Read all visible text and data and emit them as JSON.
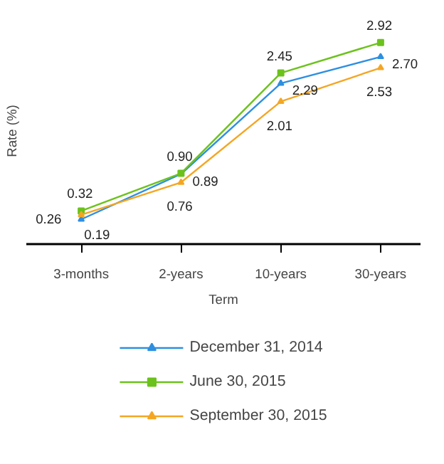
{
  "chart_data": {
    "type": "line",
    "xlabel": "Term",
    "ylabel": "Rate (%)",
    "categories": [
      "3-months",
      "2-years",
      "10-years",
      "30-years"
    ],
    "series": [
      {
        "name": "December 31, 2014",
        "color": "#2e8fe0",
        "marker": "triangle",
        "values": [
          0.19,
          0.89,
          2.29,
          2.7
        ],
        "value_labels": [
          "0.19",
          "0.89",
          "2.29",
          "2.70"
        ]
      },
      {
        "name": "June 30, 2015",
        "color": "#6cc21c",
        "marker": "square",
        "values": [
          0.32,
          0.9,
          2.45,
          2.92
        ],
        "value_labels": [
          "0.32",
          "0.90",
          "2.45",
          "2.92"
        ]
      },
      {
        "name": "September 30, 2015",
        "color": "#f4a623",
        "marker": "triangle",
        "values": [
          0.26,
          0.76,
          2.01,
          2.53
        ],
        "value_labels": [
          "0.26",
          "0.76",
          "2.01",
          "2.53"
        ]
      }
    ],
    "tick_labels": "x",
    "legend": "bottom",
    "line_style": "solid"
  }
}
